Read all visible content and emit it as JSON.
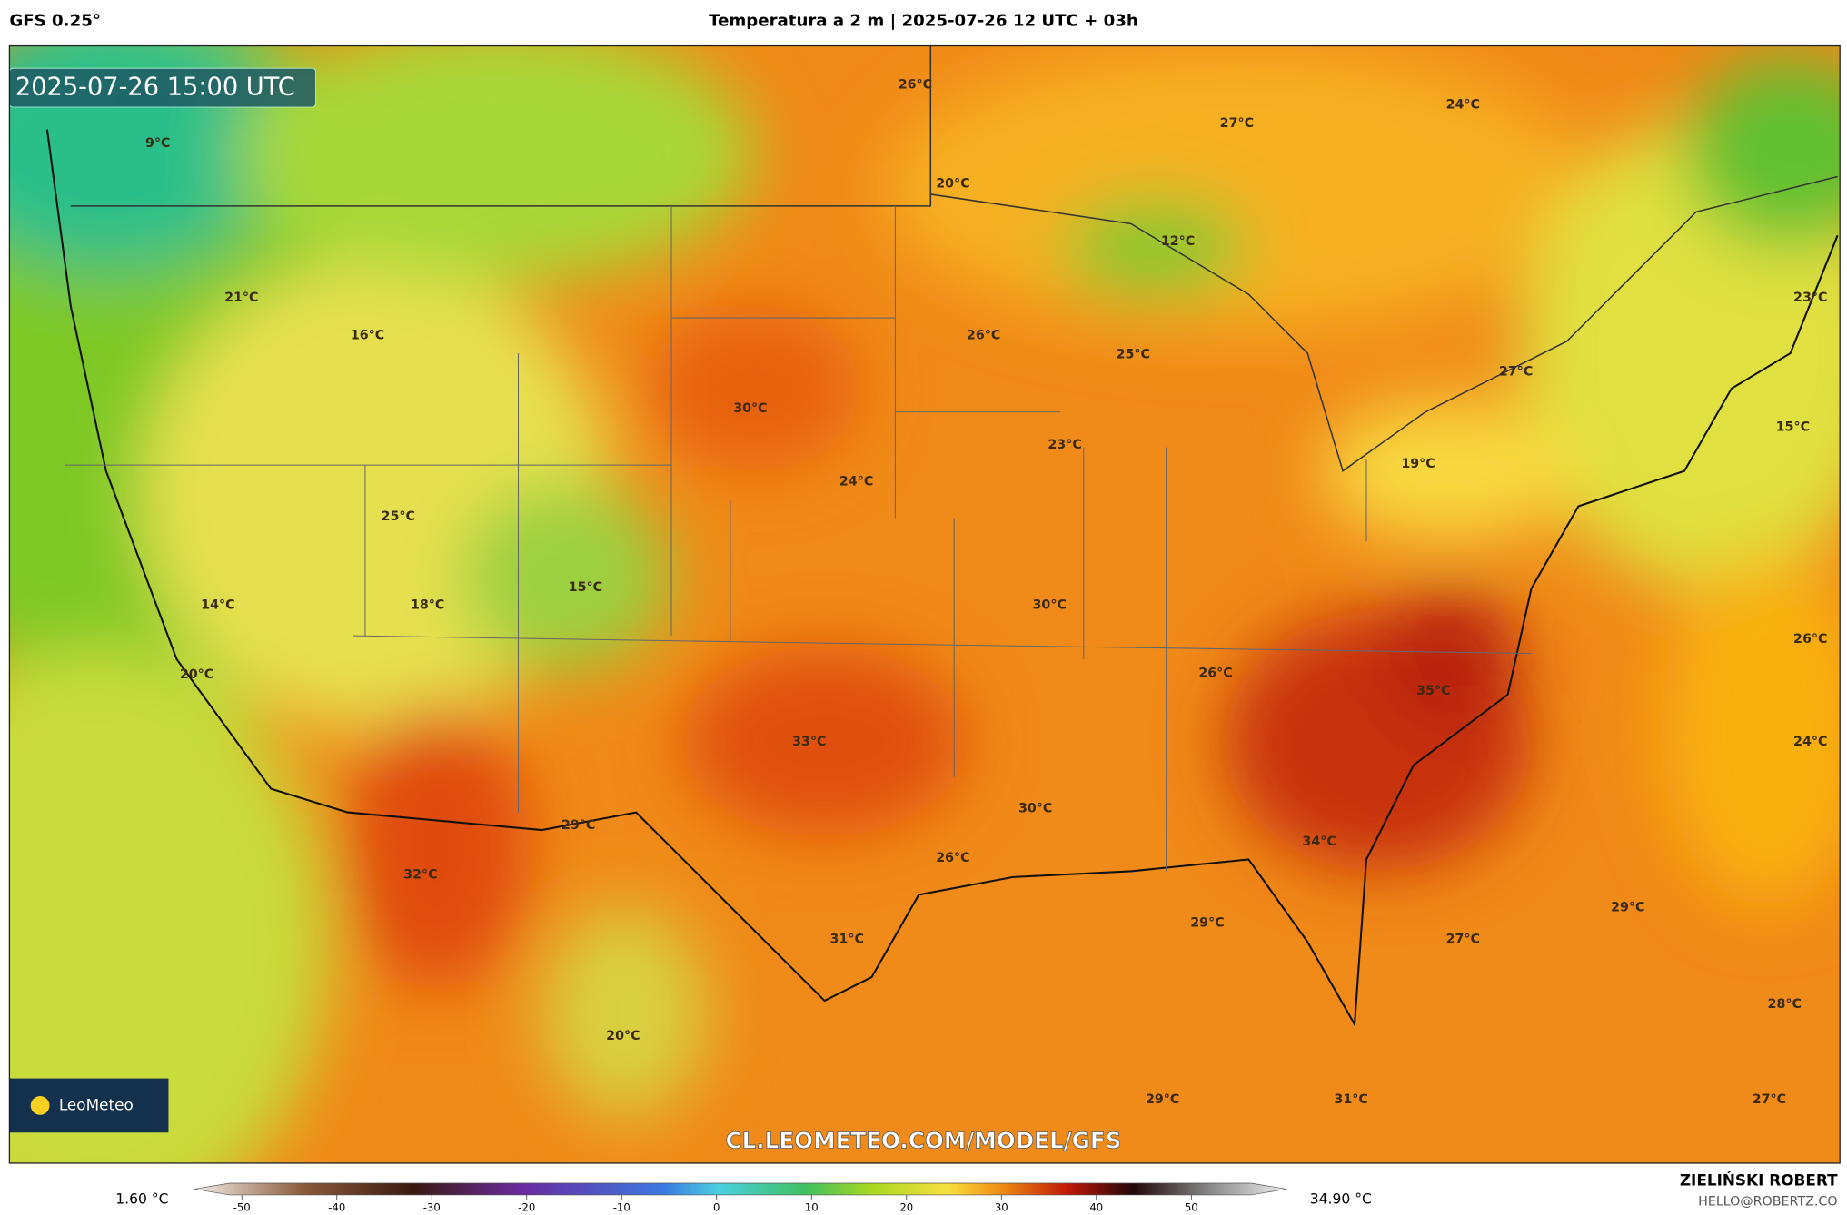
{
  "header": {
    "model": "GFS 0.25°",
    "title": "Temperatura a 2 m | 2025-07-26 12 UTC + 03h"
  },
  "map": {
    "timestamp": "2025-07-26 15:00 UTC",
    "labels": [
      "26°C",
      "27°C",
      "24°C",
      "9°C",
      "20°C",
      "12°C",
      "21°C",
      "16°C",
      "26°C",
      "25°C",
      "23°C",
      "27°C",
      "15°C",
      "30°C",
      "23°C",
      "19°C",
      "24°C",
      "25°C",
      "15°C",
      "14°C",
      "18°C",
      "30°C",
      "26°C",
      "20°C",
      "26°C",
      "35°C",
      "33°C",
      "24°C",
      "30°C",
      "29°C",
      "34°C",
      "26°C",
      "32°C",
      "29°C",
      "29°C",
      "31°C",
      "27°C",
      "28°C",
      "20°C",
      "29°C",
      "31°C",
      "27°C"
    ],
    "logo": "LeoMeteo",
    "watermark": "CL.LEOMETEO.COM/MODEL/GFS"
  },
  "colorbar": {
    "min_label": "1.60 °C",
    "max_label": "34.90 °C",
    "lim": [
      -55,
      60
    ],
    "ticks": [
      -50,
      -40,
      -30,
      -20,
      -10,
      0,
      10,
      20,
      30,
      40,
      50
    ]
  },
  "footer": {
    "author": "ZIELIŃSKI ROBERT",
    "contact": "HELLO@ROBERTZ.CO"
  }
}
